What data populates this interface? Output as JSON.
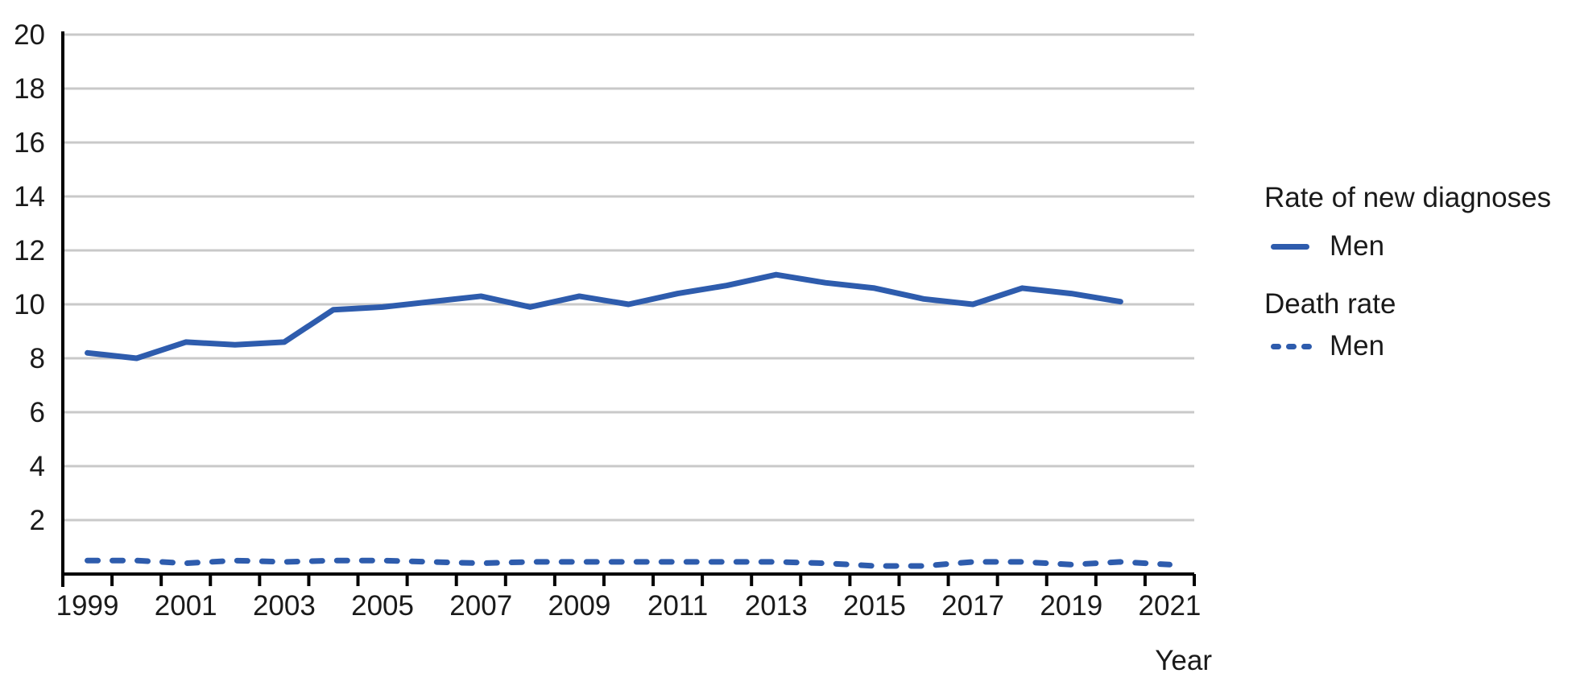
{
  "chart_data": {
    "type": "line",
    "x": [
      1999,
      2000,
      2001,
      2002,
      2003,
      2004,
      2005,
      2006,
      2007,
      2008,
      2009,
      2010,
      2011,
      2012,
      2013,
      2014,
      2015,
      2016,
      2017,
      2018,
      2019,
      2020,
      2021
    ],
    "xtick_labels": [
      "1999",
      "2001",
      "2003",
      "2005",
      "2007",
      "2009",
      "2011",
      "2013",
      "2015",
      "2017",
      "2019",
      "2021"
    ],
    "series": [
      {
        "name": "Rate of new diagnoses - Men",
        "group": "Rate of new diagnoses",
        "label": "Men",
        "style": "solid",
        "values": [
          8.2,
          8.0,
          8.6,
          8.5,
          8.6,
          9.8,
          9.9,
          10.1,
          10.3,
          9.9,
          10.3,
          10.0,
          10.4,
          10.7,
          11.1,
          10.8,
          10.6,
          10.2,
          10.0,
          10.6,
          10.4,
          10.1,
          null
        ]
      },
      {
        "name": "Death rate - Men",
        "group": "Death rate",
        "label": "Men",
        "style": "dashed",
        "values": [
          0.5,
          0.5,
          0.4,
          0.5,
          0.45,
          0.5,
          0.5,
          0.45,
          0.4,
          0.45,
          0.45,
          0.45,
          0.45,
          0.45,
          0.45,
          0.4,
          0.3,
          0.3,
          0.45,
          0.45,
          0.35,
          0.45,
          0.35
        ]
      }
    ],
    "title": "",
    "xlabel": "Year",
    "ylabel": "",
    "ylim": [
      0,
      20
    ],
    "ytick_step": 2,
    "ytick_labels": [
      "2",
      "4",
      "6",
      "8",
      "10",
      "12",
      "14",
      "16",
      "18",
      "20"
    ],
    "grid": true,
    "legend_position": "right",
    "colors": {
      "series": "#2e5cad",
      "grid": "#c9c9c9",
      "axis": "#000000",
      "text": "#1a1a1a"
    }
  }
}
